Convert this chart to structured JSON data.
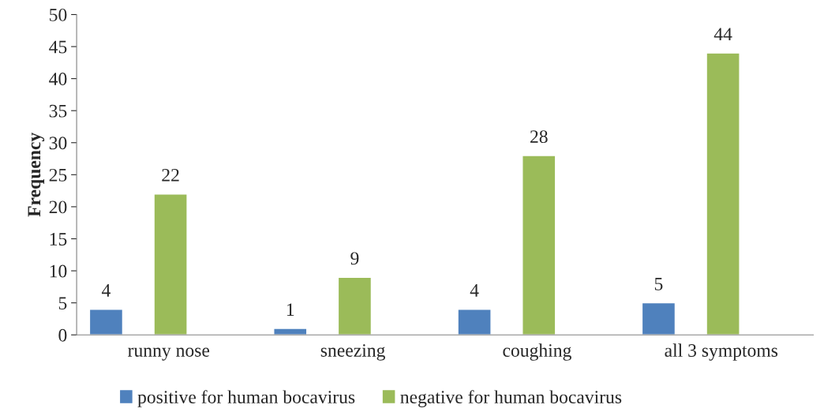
{
  "chart_data": {
    "type": "bar",
    "ylabel": "Frequency",
    "categories": [
      "runny nose",
      "sneezing",
      "coughing",
      "all 3 symptoms"
    ],
    "series": [
      {
        "name": "positive for human bocavirus",
        "color": "#4f81bd",
        "values": [
          4,
          1,
          4,
          5
        ]
      },
      {
        "name": "negative for human bocavirus",
        "color": "#9bbb59",
        "values": [
          22,
          9,
          28,
          44
        ]
      }
    ],
    "ylim": [
      0,
      50
    ],
    "yticks": [
      0,
      5,
      10,
      15,
      20,
      25,
      30,
      35,
      40,
      45,
      50
    ],
    "data_labels": true,
    "grid": false,
    "legend": "bottom"
  }
}
